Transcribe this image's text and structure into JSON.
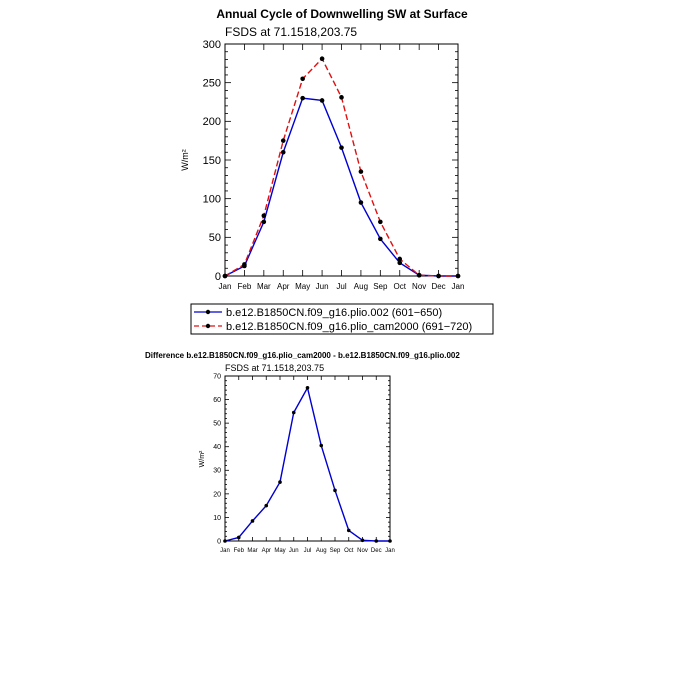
{
  "colors": {
    "series1": "#0000d0",
    "series2": "#e01010",
    "marker": "#000000",
    "axis": "#000000"
  },
  "chart_data": [
    {
      "type": "line",
      "title": "Annual Cycle of Downwelling SW at Surface",
      "subtitle": "FSDS at 71.1518,203.75",
      "ylabel": "W/m²",
      "categories": [
        "Jan",
        "Feb",
        "Mar",
        "Apr",
        "May",
        "Jun",
        "Jul",
        "Aug",
        "Sep",
        "Oct",
        "Nov",
        "Dec",
        "Jan"
      ],
      "ylim": [
        0,
        300
      ],
      "yticks": [
        0,
        50,
        100,
        150,
        200,
        250,
        300
      ],
      "series": [
        {
          "name": "b.e12.B1850CN.f09_g16.plio.002 (601−650)",
          "style": "solid",
          "values": [
            0,
            13,
            70,
            160,
            230,
            227,
            166,
            95,
            48,
            17,
            1,
            0,
            0
          ]
        },
        {
          "name": "b.e12.B1850CN.f09_g16.plio_cam2000 (691−720)",
          "style": "dashed",
          "values": [
            0,
            15,
            78,
            175,
            255,
            281,
            231,
            135,
            70,
            22,
            1,
            0,
            0
          ]
        }
      ],
      "legend": "below"
    },
    {
      "type": "line",
      "title": "Difference b.e12.B1850CN.f09_g16.plio_cam2000 - b.e12.B1850CN.f09_g16.plio.002",
      "subtitle": "FSDS at 71.1518,203.75",
      "ylabel": "W/m²",
      "categories": [
        "Jan",
        "Feb",
        "Mar",
        "Apr",
        "May",
        "Jun",
        "Jul",
        "Aug",
        "Sep",
        "Oct",
        "Nov",
        "Dec",
        "Jan"
      ],
      "ylim": [
        0,
        70
      ],
      "yticks": [
        0,
        10,
        20,
        30,
        40,
        50,
        60,
        70
      ],
      "series": [
        {
          "style": "solid",
          "values": [
            0,
            1.5,
            8.5,
            15,
            25,
            54.5,
            65,
            40.5,
            21.5,
            4.5,
            0.3,
            0,
            0
          ]
        }
      ]
    }
  ]
}
